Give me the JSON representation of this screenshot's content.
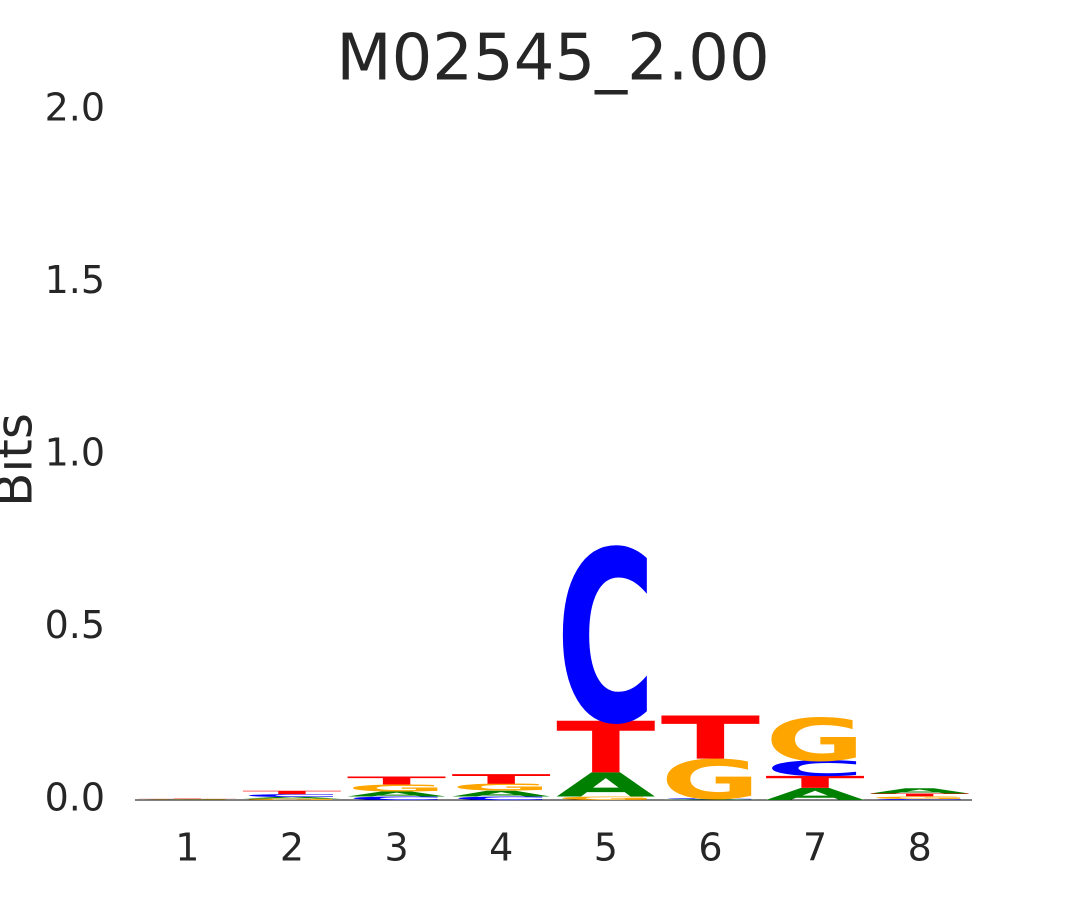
{
  "chart_data": {
    "type": "logo",
    "title": "M02545_2.00",
    "y_label": "Bits",
    "categories": [
      "1",
      "2",
      "3",
      "4",
      "5",
      "6",
      "7",
      "8"
    ],
    "series": [
      {
        "name": "A",
        "color": "#008000",
        "values": [
          0.001,
          0.005,
          0.015,
          0.017,
          0.07,
          0.002,
          0.035,
          0.015
        ]
      },
      {
        "name": "C",
        "color": "#0000ff",
        "values": [
          0.001,
          0.008,
          0.01,
          0.01,
          0.5,
          0.003,
          0.045,
          0.003
        ]
      },
      {
        "name": "G",
        "color": "#ffa500",
        "values": [
          0.001,
          0.004,
          0.02,
          0.02,
          0.01,
          0.115,
          0.125,
          0.008
        ]
      },
      {
        "name": "T",
        "color": "#ff0000",
        "values": [
          0.001,
          0.01,
          0.023,
          0.028,
          0.15,
          0.125,
          0.035,
          0.008
        ]
      }
    ],
    "ylim": [
      0,
      2
    ],
    "yticks": [
      {
        "value": 0,
        "label": "0.0"
      },
      0.5,
      {
        "value": 1,
        "label": "1.0"
      },
      1.5,
      {
        "value": 2,
        "label": "2.0"
      }
    ]
  }
}
